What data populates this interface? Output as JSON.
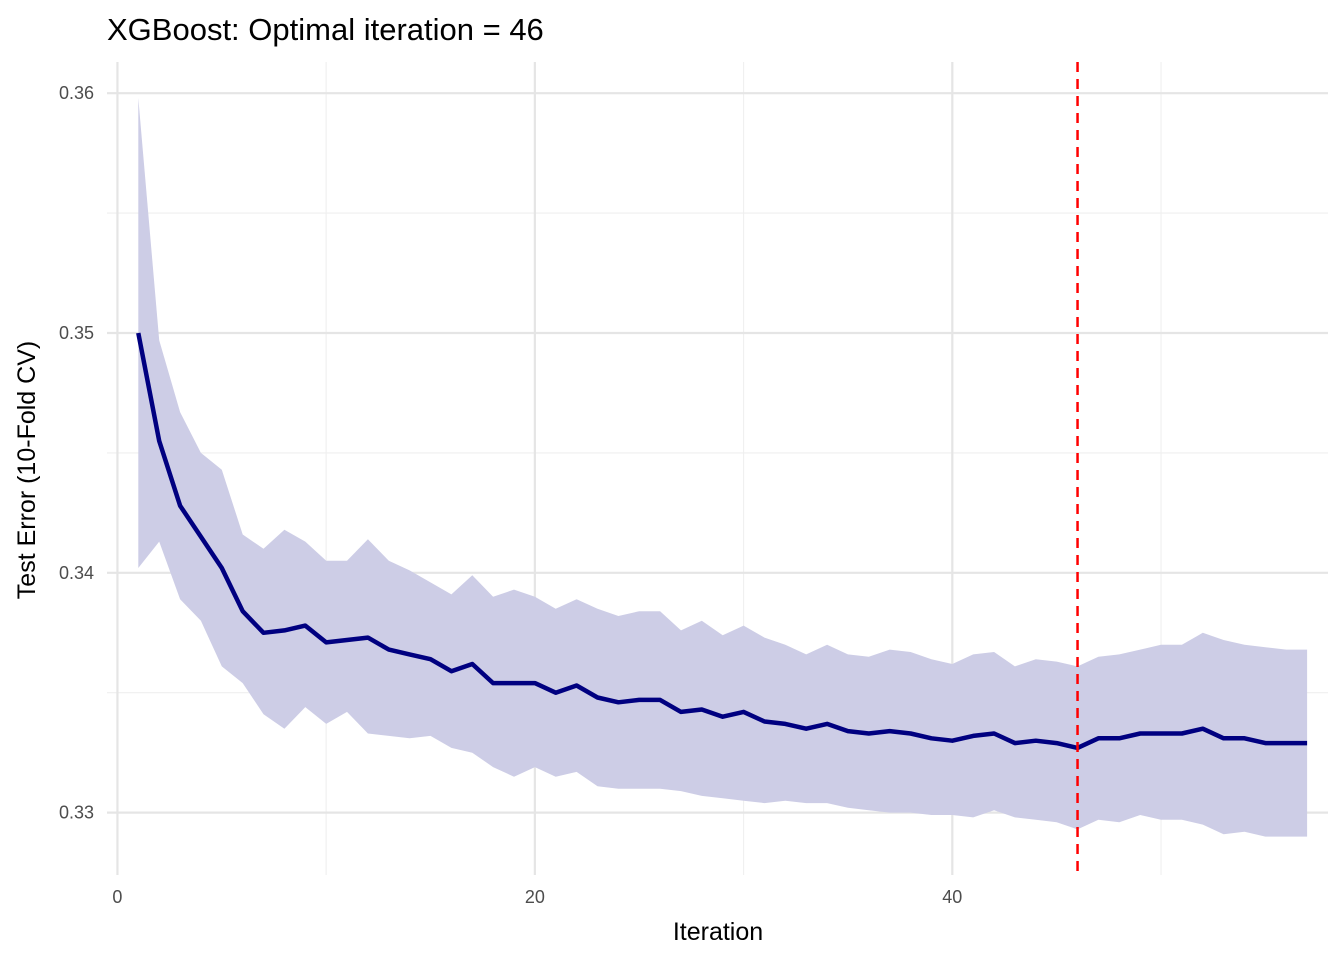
{
  "chart_data": {
    "type": "line",
    "title": "XGBoost: Optimal iteration = 46",
    "xlabel": "Iteration",
    "ylabel": "Test Error (10-Fold CV)",
    "xlim": [
      -0.5,
      58
    ],
    "ylim": [
      0.3274,
      0.3613
    ],
    "x_ticks": [
      0,
      20,
      40
    ],
    "x_minor_ticks": [
      10,
      30,
      50
    ],
    "y_ticks": [
      0.33,
      0.34,
      0.35,
      0.36
    ],
    "y_minor_ticks": [
      0.335,
      0.345,
      0.355
    ],
    "grid": true,
    "optimal_iteration": 46,
    "colors": {
      "line": "#000080",
      "band": "#cdcde6",
      "vline": "#ff0000"
    },
    "series": [
      {
        "x": [
          1,
          2,
          3,
          4,
          5,
          6,
          7,
          8,
          9,
          10,
          11,
          12,
          13,
          14,
          15,
          16,
          17,
          18,
          19,
          20,
          21,
          22,
          23,
          24,
          25,
          26,
          27,
          28,
          29,
          30,
          31,
          32,
          33,
          34,
          35,
          36,
          37,
          38,
          39,
          40,
          41,
          42,
          43,
          44,
          45,
          46,
          47,
          48,
          49,
          50,
          51,
          52,
          53,
          54,
          55,
          56,
          57
        ],
        "mean": [
          0.35,
          0.3455,
          0.3428,
          0.3415,
          0.3402,
          0.3384,
          0.3375,
          0.3376,
          0.3378,
          0.3371,
          0.3372,
          0.3373,
          0.3368,
          0.3366,
          0.3364,
          0.3359,
          0.3362,
          0.3354,
          0.3354,
          0.3354,
          0.335,
          0.3353,
          0.3348,
          0.3346,
          0.3347,
          0.3347,
          0.3342,
          0.3343,
          0.334,
          0.3342,
          0.3338,
          0.3337,
          0.3335,
          0.3337,
          0.3334,
          0.3333,
          0.3334,
          0.3333,
          0.3331,
          0.333,
          0.3332,
          0.3333,
          0.3329,
          0.333,
          0.3329,
          0.3327,
          0.3331,
          0.3331,
          0.3333,
          0.3333,
          0.3333,
          0.3335,
          0.3331,
          0.3331,
          0.3329,
          0.3329,
          0.3329
        ],
        "upper": [
          0.3598,
          0.3497,
          0.3467,
          0.345,
          0.3443,
          0.3416,
          0.341,
          0.3418,
          0.3413,
          0.3405,
          0.3405,
          0.3414,
          0.3405,
          0.3401,
          0.3396,
          0.3391,
          0.3399,
          0.339,
          0.3393,
          0.339,
          0.3385,
          0.3389,
          0.3385,
          0.3382,
          0.3384,
          0.3384,
          0.3376,
          0.338,
          0.3374,
          0.3378,
          0.3373,
          0.337,
          0.3366,
          0.337,
          0.3366,
          0.3365,
          0.3368,
          0.3367,
          0.3364,
          0.3362,
          0.3366,
          0.3367,
          0.3361,
          0.3364,
          0.3363,
          0.3361,
          0.3365,
          0.3366,
          0.3368,
          0.337,
          0.337,
          0.3375,
          0.3372,
          0.337,
          0.3369,
          0.3368,
          0.3368
        ],
        "lower": [
          0.3402,
          0.3413,
          0.3389,
          0.338,
          0.3361,
          0.3354,
          0.3341,
          0.3335,
          0.3344,
          0.3337,
          0.3342,
          0.3333,
          0.3332,
          0.3331,
          0.3332,
          0.3327,
          0.3325,
          0.3319,
          0.3315,
          0.3319,
          0.3315,
          0.3317,
          0.3311,
          0.331,
          0.331,
          0.331,
          0.3309,
          0.3307,
          0.3306,
          0.3305,
          0.3304,
          0.3305,
          0.3304,
          0.3304,
          0.3302,
          0.3301,
          0.33,
          0.33,
          0.3299,
          0.3299,
          0.3298,
          0.3301,
          0.3298,
          0.3297,
          0.3296,
          0.3293,
          0.3297,
          0.3296,
          0.3299,
          0.3297,
          0.3297,
          0.3295,
          0.3291,
          0.3292,
          0.329,
          0.329,
          0.329
        ]
      }
    ]
  }
}
